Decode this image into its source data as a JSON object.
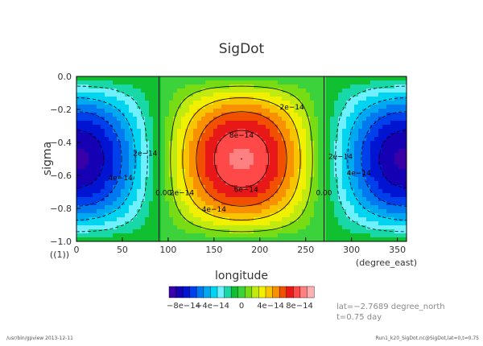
{
  "chart_data": {
    "type": "heatmap",
    "title": "SigDot",
    "xlabel": "longitude",
    "ylabel": "sigma",
    "x_unit": "(degree_east)",
    "y_unit_label": "((1))",
    "xlim": [
      0,
      360
    ],
    "ylim": [
      -1.0,
      0.0
    ],
    "x_ticks": [
      "0",
      "50",
      "100",
      "150",
      "200",
      "250",
      "300",
      "350"
    ],
    "x_tick_values": [
      0,
      50,
      100,
      150,
      200,
      250,
      300,
      350
    ],
    "y_ticks": [
      "0.0",
      "−0.2",
      "−0.4",
      "−0.6",
      "−0.8",
      "−1.0"
    ],
    "y_tick_values": [
      0.0,
      -0.2,
      -0.4,
      -0.6,
      -0.8,
      -1.0
    ],
    "field": {
      "amplitude": 9.2e-14,
      "max_at": {
        "lon": 180,
        "sigma": -0.5
      },
      "min_at": [
        {
          "lon": 0,
          "sigma": -0.5
        },
        {
          "lon": 360,
          "sigma": -0.5
        }
      ],
      "zero_lines_lon": [
        90,
        270
      ]
    },
    "contour_labels": [
      {
        "text": "8e−14",
        "lon": 180,
        "sigma": -0.37
      },
      {
        "text": "6e−14",
        "lon": 185,
        "sigma": -0.7
      },
      {
        "text": "4e−14",
        "lon": 150,
        "sigma": -0.82
      },
      {
        "text": "2e−14",
        "lon": 235,
        "sigma": -0.2
      },
      {
        "text": "2e−14",
        "lon": 115,
        "sigma": -0.72
      },
      {
        "text": "0.00",
        "lon": 95,
        "sigma": -0.72
      },
      {
        "text": "0.00",
        "lon": 270,
        "sigma": -0.72
      },
      {
        "text": "2e−14",
        "lon": 288,
        "sigma": -0.5
      },
      {
        "text": "4e−14",
        "lon": 308,
        "sigma": -0.6
      },
      {
        "text": "2e−14",
        "lon": 75,
        "sigma": -0.48
      },
      {
        "text": "4e−14",
        "lon": 48,
        "sigma": -0.63
      }
    ],
    "colorbar": {
      "levels": [
        -1e-13,
        -9e-14,
        -8e-14,
        -7e-14,
        -6e-14,
        -5e-14,
        -4e-14,
        -3e-14,
        -2e-14,
        -1e-14,
        0,
        1e-14,
        2e-14,
        3e-14,
        4e-14,
        5e-14,
        6e-14,
        7e-14,
        8e-14,
        9e-14,
        1e-13
      ],
      "colors": [
        "#3a00a8",
        "#1600b4",
        "#0014d2",
        "#0040ea",
        "#0078f0",
        "#00a8f0",
        "#00d4f0",
        "#6ef0ff",
        "#18d8a8",
        "#10c030",
        "#3cd23c",
        "#78dc14",
        "#c0ea10",
        "#f0f000",
        "#f8c400",
        "#f89000",
        "#f05000",
        "#e81818",
        "#ff4848",
        "#ff8080",
        "#ffb0b0"
      ],
      "tick_labels": [
        "−8e−14",
        "−4e−14",
        "0",
        "4e−14",
        "8e−14"
      ],
      "tick_values": [
        -8e-14,
        -4e-14,
        0,
        4e-14,
        8e-14
      ]
    }
  },
  "info": {
    "lat": "lat=−2.7689 degree_north",
    "time": "t=0.75 day"
  },
  "footer": {
    "left": "/usr/bin/gpview  2013-12-11",
    "right": "Run1_k20_SigDot.nc@SigDot,lat=0,t=0.75"
  }
}
